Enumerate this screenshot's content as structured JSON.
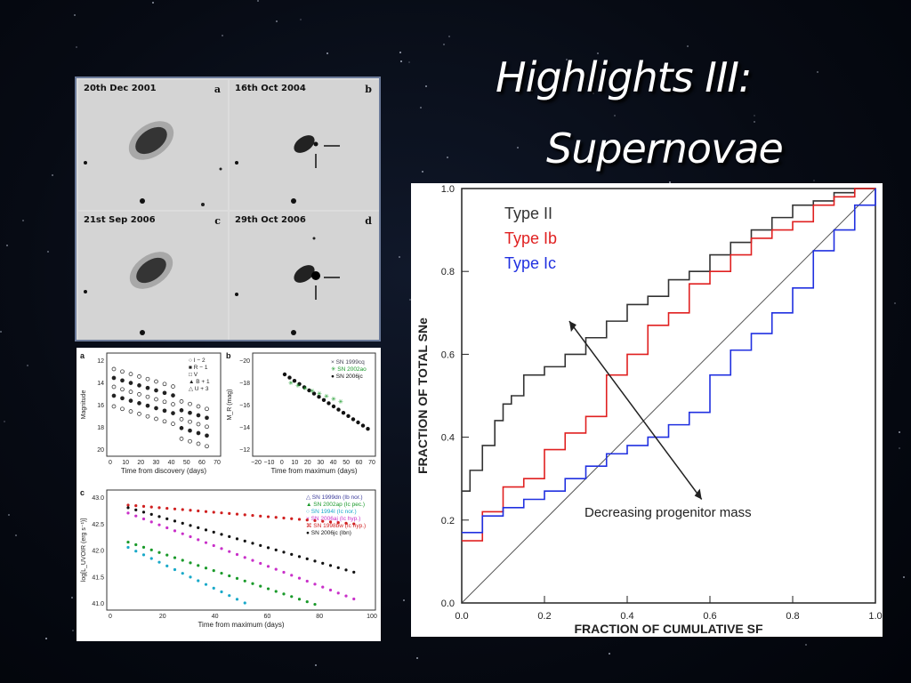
{
  "title": {
    "line1": "Highlights III:",
    "line2": "Supernovae"
  },
  "images": [
    {
      "date": "20th Dec 2001",
      "letter": "a"
    },
    {
      "date": "16th Oct 2004",
      "letter": "b"
    },
    {
      "date": "21st Sep 2006",
      "letter": "c"
    },
    {
      "date": "29th Oct 2006",
      "letter": "d"
    }
  ],
  "lightcurves": {
    "a": {
      "letter": "a",
      "ylabel": "Magnitude",
      "xlabel": "Time from discovery (days)",
      "legend": [
        "I − 2",
        "R − 1",
        "V",
        "B + 1",
        "U + 3"
      ],
      "yticks": [
        "12",
        "14",
        "16",
        "18",
        "20"
      ],
      "xticks": [
        "0",
        "10",
        "20",
        "30",
        "40",
        "50",
        "60",
        "70"
      ]
    },
    "b": {
      "letter": "b",
      "ylabel": "M_R (mag)",
      "xlabel": "Time from maximum (days)",
      "legend": [
        "SN 1999cq",
        "SN 2002ao",
        "SN 2006jc"
      ],
      "yticks": [
        "−20",
        "−18",
        "−16",
        "−14",
        "−12"
      ],
      "xticks": [
        "−20",
        "−10",
        "0",
        "10",
        "20",
        "30",
        "40",
        "50",
        "60",
        "70"
      ]
    },
    "c": {
      "letter": "c",
      "ylabel": "log[L_UVOIR (erg s⁻¹)]",
      "xlabel": "Time from maximum (days)",
      "legend": [
        "SN 1999dn (Ib nor.)",
        "SN 2002ap (Ic pec.)",
        "SN 1994I (Ic nor.)",
        "SN 2006aj (Ic hyp.)",
        "SN 1998bw (Ic hyp.)",
        "SN 2006jc (Ibn)"
      ],
      "yticks": [
        "43.0",
        "42.5",
        "42.0",
        "41.5",
        "41.0"
      ],
      "xticks": [
        "0",
        "20",
        "40",
        "60",
        "80",
        "100"
      ]
    }
  },
  "chart_data": {
    "type": "line",
    "xlabel": "FRACTION OF CUMULATIVE SF",
    "ylabel": "FRACTION OF TOTAL SNe",
    "xlim": [
      0,
      1.0
    ],
    "ylim": [
      0,
      1.0
    ],
    "xticks": [
      "0.0",
      "0.2",
      "0.4",
      "0.6",
      "0.8",
      "1.0"
    ],
    "yticks": [
      "0.0",
      "0.2",
      "0.4",
      "0.6",
      "0.8",
      "1.0"
    ],
    "annotation": "Decreasing progenitor mass",
    "series": [
      {
        "name": "Type II",
        "color": "#333333",
        "x": [
          0,
          0.02,
          0.05,
          0.08,
          0.1,
          0.12,
          0.15,
          0.2,
          0.25,
          0.3,
          0.35,
          0.4,
          0.45,
          0.5,
          0.55,
          0.6,
          0.65,
          0.7,
          0.75,
          0.8,
          0.85,
          0.9,
          0.95,
          1.0
        ],
        "y": [
          0.27,
          0.32,
          0.38,
          0.44,
          0.48,
          0.5,
          0.55,
          0.57,
          0.6,
          0.64,
          0.68,
          0.72,
          0.74,
          0.78,
          0.8,
          0.84,
          0.87,
          0.9,
          0.93,
          0.96,
          0.97,
          0.99,
          1.0,
          1.0
        ]
      },
      {
        "name": "Type Ib",
        "color": "#e02020",
        "x": [
          0,
          0.05,
          0.1,
          0.15,
          0.2,
          0.25,
          0.3,
          0.35,
          0.4,
          0.45,
          0.5,
          0.55,
          0.6,
          0.65,
          0.7,
          0.75,
          0.8,
          0.85,
          0.9,
          0.95,
          1.0
        ],
        "y": [
          0.15,
          0.22,
          0.28,
          0.3,
          0.37,
          0.41,
          0.45,
          0.55,
          0.6,
          0.67,
          0.7,
          0.77,
          0.8,
          0.84,
          0.88,
          0.9,
          0.92,
          0.96,
          0.98,
          1.0,
          1.0
        ]
      },
      {
        "name": "Type Ic",
        "color": "#2030e0",
        "x": [
          0,
          0.05,
          0.1,
          0.15,
          0.2,
          0.25,
          0.3,
          0.35,
          0.4,
          0.45,
          0.5,
          0.55,
          0.6,
          0.65,
          0.7,
          0.75,
          0.8,
          0.85,
          0.9,
          0.95,
          1.0
        ],
        "y": [
          0.17,
          0.21,
          0.23,
          0.25,
          0.27,
          0.3,
          0.33,
          0.36,
          0.38,
          0.4,
          0.43,
          0.46,
          0.55,
          0.61,
          0.65,
          0.7,
          0.76,
          0.85,
          0.9,
          0.96,
          1.0
        ]
      }
    ]
  }
}
